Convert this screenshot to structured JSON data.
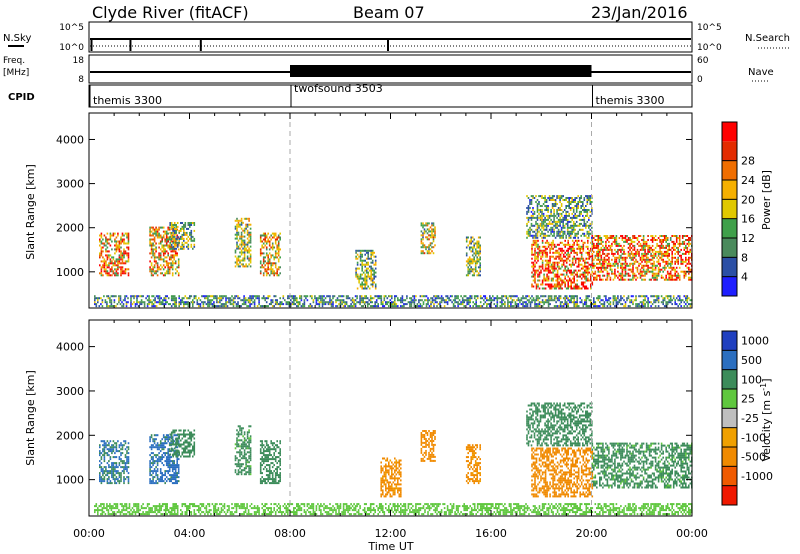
{
  "header": {
    "station": "Clyde River (fitACF)",
    "beam": "Beam 07",
    "date": "23/Jan/2016"
  },
  "status_panels": {
    "nsky": {
      "label": "N.Sky",
      "ticks_left": [
        "10^5",
        "10^0"
      ],
      "ticks_right": [
        "10^5",
        "10^0"
      ],
      "right_label": "N.Search"
    },
    "freq": {
      "label_line1": "Freq.",
      "label_line2": "[MHz]",
      "ticks_left": [
        "18",
        "8"
      ],
      "ticks_right": [
        "60",
        "0"
      ],
      "right_label": "Nave"
    },
    "cpid": {
      "label": "CPID",
      "segments": [
        {
          "name": "themis 3300",
          "start_hour": 0,
          "end_hour": 8
        },
        {
          "name": "twofsound 3503",
          "start_hour": 8,
          "end_hour": 20
        },
        {
          "name": "themis 3300",
          "start_hour": 20,
          "end_hour": 24
        }
      ]
    }
  },
  "colors": {
    "power_scale": [
      "#1f1fff",
      "#2b4fa5",
      "#4a8a5c",
      "#3fa04a",
      "#e0c800",
      "#f5b000",
      "#f06e00",
      "#e32b00",
      "#ff0000"
    ],
    "velocity_scale": [
      "#1f3fbf",
      "#2b6fc0",
      "#3c8c5a",
      "#5fc73e",
      "#bfbfbf",
      "#f0a000",
      "#f08a00",
      "#f05a00",
      "#f01800"
    ]
  },
  "chart_data": [
    {
      "type": "heatmap",
      "quantity": "Power",
      "ylabel": "Slant Range [km]",
      "ylim": [
        180,
        4600
      ],
      "xlim": [
        0,
        24
      ],
      "yticks": [
        "1000",
        "2000",
        "3000",
        "4000"
      ],
      "colorbar_label": "Power [dB]",
      "colorbar_ticks": [
        "4",
        "8",
        "12",
        "16",
        "20",
        "24",
        "28"
      ],
      "colorbar_range": [
        0,
        32
      ],
      "regions": [
        {
          "x": [
            0.4,
            1.6
          ],
          "y": [
            900,
            1850
          ],
          "value": 24
        },
        {
          "x": [
            2.4,
            3.6
          ],
          "y": [
            900,
            2000
          ],
          "value": 22
        },
        {
          "x": [
            3.2,
            4.2
          ],
          "y": [
            1500,
            2100
          ],
          "value": 14
        },
        {
          "x": [
            5.8,
            6.4
          ],
          "y": [
            1100,
            2200
          ],
          "value": 16
        },
        {
          "x": [
            6.8,
            7.6
          ],
          "y": [
            900,
            1850
          ],
          "value": 20
        },
        {
          "x": [
            10.6,
            11.4
          ],
          "y": [
            600,
            1500
          ],
          "value": 14
        },
        {
          "x": [
            13.2,
            13.8
          ],
          "y": [
            1400,
            2100
          ],
          "value": 18
        },
        {
          "x": [
            15.0,
            15.6
          ],
          "y": [
            900,
            1800
          ],
          "value": 14
        },
        {
          "x": [
            17.6,
            20.0
          ],
          "y": [
            600,
            1700
          ],
          "value": 28
        },
        {
          "x": [
            20.0,
            24.0
          ],
          "y": [
            800,
            1800
          ],
          "value": 26
        },
        {
          "x": [
            17.4,
            20.0
          ],
          "y": [
            1750,
            2700
          ],
          "value": 12
        },
        {
          "x": [
            0.2,
            24.0
          ],
          "y": [
            200,
            450
          ],
          "value": 10
        }
      ]
    },
    {
      "type": "heatmap",
      "quantity": "Velocity",
      "ylabel": "Slant Range [km]",
      "xlabel": "Time UT",
      "ylim": [
        180,
        4600
      ],
      "xlim": [
        0,
        24
      ],
      "yticks": [
        "1000",
        "2000",
        "3000",
        "4000"
      ],
      "xticks": [
        "00:00",
        "04:00",
        "08:00",
        "12:00",
        "16:00",
        "20:00",
        "00:00"
      ],
      "colorbar_label": "Velocity [m s^-1]",
      "colorbar_ticks": [
        "1000",
        "500",
        "100",
        "25",
        "-25",
        "-100",
        "-500",
        "-1000"
      ],
      "regions": [
        {
          "x": [
            0.4,
            1.6
          ],
          "y": [
            900,
            1850
          ],
          "value": 500
        },
        {
          "x": [
            2.4,
            3.6
          ],
          "y": [
            900,
            2000
          ],
          "value": 700
        },
        {
          "x": [
            3.2,
            4.2
          ],
          "y": [
            1500,
            2100
          ],
          "value": 300
        },
        {
          "x": [
            5.8,
            6.4
          ],
          "y": [
            1100,
            2200
          ],
          "value": 150
        },
        {
          "x": [
            6.8,
            7.6
          ],
          "y": [
            900,
            1850
          ],
          "value": 200
        },
        {
          "x": [
            11.6,
            12.4
          ],
          "y": [
            600,
            1500
          ],
          "value": -150
        },
        {
          "x": [
            13.2,
            13.8
          ],
          "y": [
            1400,
            2100
          ],
          "value": -200
        },
        {
          "x": [
            15.0,
            15.6
          ],
          "y": [
            900,
            1800
          ],
          "value": -150
        },
        {
          "x": [
            17.6,
            20.0
          ],
          "y": [
            600,
            1700
          ],
          "value": -300
        },
        {
          "x": [
            20.0,
            24.0
          ],
          "y": [
            800,
            1800
          ],
          "value": 150
        },
        {
          "x": [
            17.4,
            20.0
          ],
          "y": [
            1750,
            2700
          ],
          "value": 300
        },
        {
          "x": [
            0.2,
            24.0
          ],
          "y": [
            200,
            450
          ],
          "value": 50
        }
      ]
    }
  ]
}
